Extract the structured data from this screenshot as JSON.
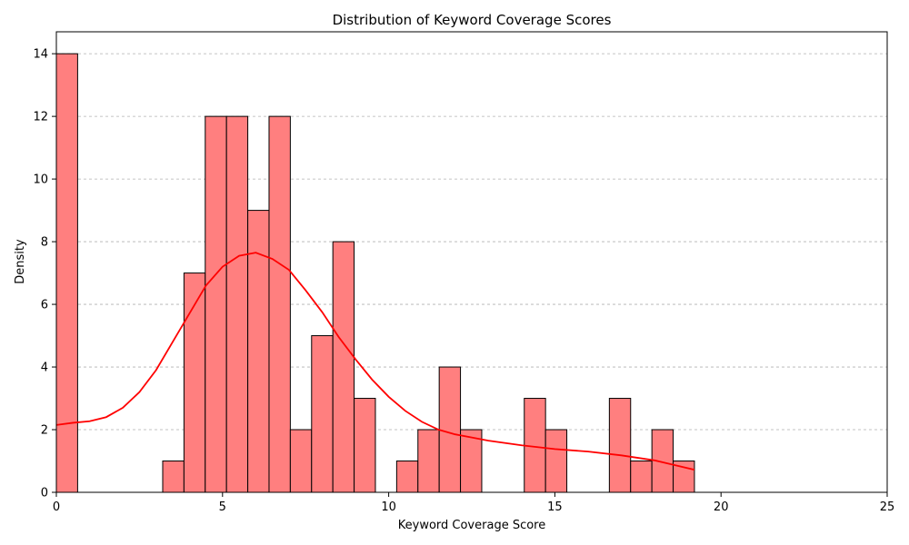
{
  "chart_data": {
    "type": "bar",
    "title": "Distribution of Keyword Coverage Scores",
    "xlabel": "Keyword Coverage Score",
    "ylabel": "Density",
    "xlim": [
      0,
      25
    ],
    "ylim": [
      0,
      14.7
    ],
    "xticks": [
      0,
      5,
      10,
      15,
      20,
      25
    ],
    "yticks": [
      0,
      2,
      4,
      6,
      8,
      10,
      12,
      14
    ],
    "grid": "y-dashed",
    "bar_color": "#ff7f7f",
    "bar_edge_color": "#000000",
    "kde_color": "#ff0000",
    "grid_color": "#b0b0b0",
    "bins": [
      {
        "x0": 0.0,
        "x1": 0.64,
        "value": 14
      },
      {
        "x0": 3.2,
        "x1": 3.84,
        "value": 1
      },
      {
        "x0": 3.84,
        "x1": 4.48,
        "value": 7
      },
      {
        "x0": 4.48,
        "x1": 5.12,
        "value": 12
      },
      {
        "x0": 5.12,
        "x1": 5.76,
        "value": 12
      },
      {
        "x0": 5.76,
        "x1": 6.4,
        "value": 9
      },
      {
        "x0": 6.4,
        "x1": 7.04,
        "value": 12
      },
      {
        "x0": 7.04,
        "x1": 7.68,
        "value": 2
      },
      {
        "x0": 7.68,
        "x1": 8.32,
        "value": 5
      },
      {
        "x0": 8.32,
        "x1": 8.96,
        "value": 8
      },
      {
        "x0": 8.96,
        "x1": 9.6,
        "value": 3
      },
      {
        "x0": 10.24,
        "x1": 10.88,
        "value": 1
      },
      {
        "x0": 10.88,
        "x1": 11.52,
        "value": 2
      },
      {
        "x0": 11.52,
        "x1": 12.16,
        "value": 4
      },
      {
        "x0": 12.16,
        "x1": 12.8,
        "value": 2
      },
      {
        "x0": 14.08,
        "x1": 14.72,
        "value": 3
      },
      {
        "x0": 14.72,
        "x1": 15.36,
        "value": 2
      },
      {
        "x0": 16.64,
        "x1": 17.28,
        "value": 3
      },
      {
        "x0": 17.28,
        "x1": 17.92,
        "value": 1
      },
      {
        "x0": 17.92,
        "x1": 18.56,
        "value": 2
      },
      {
        "x0": 18.56,
        "x1": 19.2,
        "value": 1
      }
    ],
    "kde": {
      "x": [
        0,
        0.5,
        1.0,
        1.5,
        2.0,
        2.5,
        3.0,
        3.5,
        4.0,
        4.5,
        5.0,
        5.5,
        6.0,
        6.5,
        7.0,
        7.5,
        8.0,
        8.5,
        9.0,
        9.5,
        10.0,
        10.5,
        11.0,
        11.5,
        12.0,
        12.5,
        13.0,
        14.0,
        15.0,
        16.0,
        17.0,
        18.0,
        19.2
      ],
      "y": [
        2.15,
        2.22,
        2.27,
        2.4,
        2.7,
        3.2,
        3.9,
        4.8,
        5.7,
        6.6,
        7.2,
        7.55,
        7.65,
        7.45,
        7.1,
        6.45,
        5.75,
        4.95,
        4.25,
        3.6,
        3.05,
        2.6,
        2.25,
        2.0,
        1.85,
        1.75,
        1.65,
        1.5,
        1.38,
        1.3,
        1.18,
        1.02,
        0.72
      ]
    }
  }
}
